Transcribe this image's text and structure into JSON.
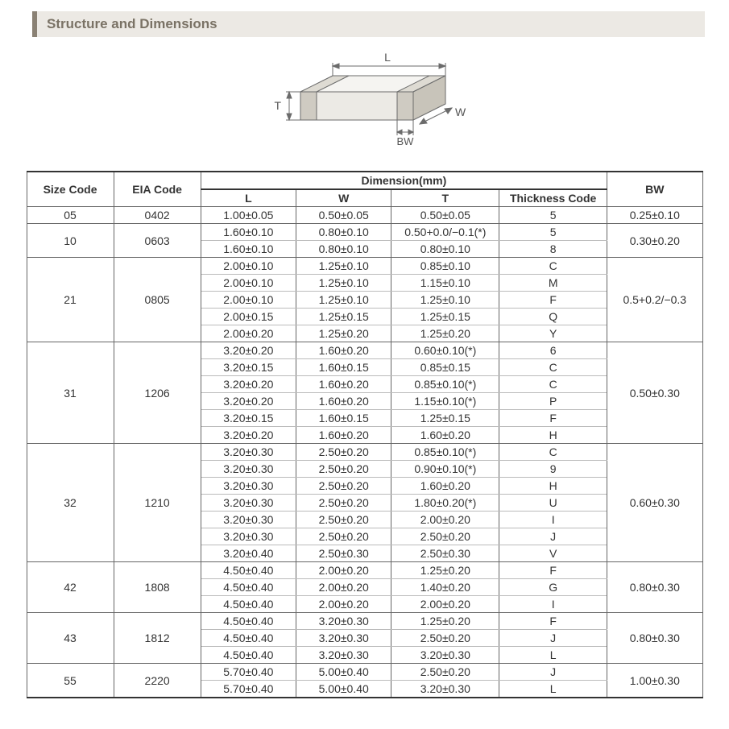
{
  "title": "Structure and Dimensions",
  "diagram": {
    "labels": {
      "L": "L",
      "W": "W",
      "T": "T",
      "BW": "BW"
    },
    "stroke": "#6b6b6b",
    "fill_top": "#f5f4f1",
    "fill_front": "#eceae5",
    "fill_side": "#d9d6cf",
    "fill_band": "#cfcbc2"
  },
  "table": {
    "header_dim": "Dimension(mm)",
    "columns": {
      "size": "Size Code",
      "eia": "EIA Code",
      "L": "L",
      "W": "W",
      "T": "T",
      "thick": "Thickness  Code",
      "BW": "BW"
    },
    "border_color": "#666666",
    "groups": [
      {
        "size": "05",
        "eia": "0402",
        "bw": "0.25±0.10",
        "rows": [
          {
            "L": "1.00±0.05",
            "W": "0.50±0.05",
            "T": "0.50±0.05",
            "thick": "5"
          }
        ]
      },
      {
        "size": "10",
        "eia": "0603",
        "bw": "0.30±0.20",
        "rows": [
          {
            "L": "1.60±0.10",
            "W": "0.80±0.10",
            "T": "0.50+0.0/−0.1(*)",
            "thick": "5"
          },
          {
            "L": "1.60±0.10",
            "W": "0.80±0.10",
            "T": "0.80±0.10",
            "thick": "8"
          }
        ]
      },
      {
        "size": "21",
        "eia": "0805",
        "bw": "0.5+0.2/−0.3",
        "rows": [
          {
            "L": "2.00±0.10",
            "W": "1.25±0.10",
            "T": "0.85±0.10",
            "thick": "C"
          },
          {
            "L": "2.00±0.10",
            "W": "1.25±0.10",
            "T": "1.15±0.10",
            "thick": "M"
          },
          {
            "L": "2.00±0.10",
            "W": "1.25±0.10",
            "T": "1.25±0.10",
            "thick": "F"
          },
          {
            "L": "2.00±0.15",
            "W": "1.25±0.15",
            "T": "1.25±0.15",
            "thick": "Q"
          },
          {
            "L": "2.00±0.20",
            "W": "1.25±0.20",
            "T": "1.25±0.20",
            "thick": "Y"
          }
        ]
      },
      {
        "size": "31",
        "eia": "1206",
        "bw": "0.50±0.30",
        "rows": [
          {
            "L": "3.20±0.20",
            "W": "1.60±0.20",
            "T": "0.60±0.10(*)",
            "thick": "6"
          },
          {
            "L": "3.20±0.15",
            "W": "1.60±0.15",
            "T": "0.85±0.15",
            "thick": "C"
          },
          {
            "L": "3.20±0.20",
            "W": "1.60±0.20",
            "T": "0.85±0.10(*)",
            "thick": "C"
          },
          {
            "L": "3.20±0.20",
            "W": "1.60±0.20",
            "T": "1.15±0.10(*)",
            "thick": "P"
          },
          {
            "L": "3.20±0.15",
            "W": "1.60±0.15",
            "T": "1.25±0.15",
            "thick": "F"
          },
          {
            "L": "3.20±0.20",
            "W": "1.60±0.20",
            "T": "1.60±0.20",
            "thick": "H"
          }
        ]
      },
      {
        "size": "32",
        "eia": "1210",
        "bw": "0.60±0.30",
        "rows": [
          {
            "L": "3.20±0.30",
            "W": "2.50±0.20",
            "T": "0.85±0.10(*)",
            "thick": "C"
          },
          {
            "L": "3.20±0.30",
            "W": "2.50±0.20",
            "T": "0.90±0.10(*)",
            "thick": "9"
          },
          {
            "L": "3.20±0.30",
            "W": "2.50±0.20",
            "T": "1.60±0.20",
            "thick": "H"
          },
          {
            "L": "3.20±0.30",
            "W": "2.50±0.20",
            "T": "1.80±0.20(*)",
            "thick": "U"
          },
          {
            "L": "3.20±0.30",
            "W": "2.50±0.20",
            "T": "2.00±0.20",
            "thick": "I"
          },
          {
            "L": "3.20±0.30",
            "W": "2.50±0.20",
            "T": "2.50±0.20",
            "thick": "J"
          },
          {
            "L": "3.20±0.40",
            "W": "2.50±0.30",
            "T": "2.50±0.30",
            "thick": "V"
          }
        ]
      },
      {
        "size": "42",
        "eia": "1808",
        "bw": "0.80±0.30",
        "rows": [
          {
            "L": "4.50±0.40",
            "W": "2.00±0.20",
            "T": "1.25±0.20",
            "thick": "F"
          },
          {
            "L": "4.50±0.40",
            "W": "2.00±0.20",
            "T": "1.40±0.20",
            "thick": "G"
          },
          {
            "L": "4.50±0.40",
            "W": "2.00±0.20",
            "T": "2.00±0.20",
            "thick": "I"
          }
        ]
      },
      {
        "size": "43",
        "eia": "1812",
        "bw": "0.80±0.30",
        "rows": [
          {
            "L": "4.50±0.40",
            "W": "3.20±0.30",
            "T": "1.25±0.20",
            "thick": "F"
          },
          {
            "L": "4.50±0.40",
            "W": "3.20±0.30",
            "T": "2.50±0.20",
            "thick": "J"
          },
          {
            "L": "4.50±0.40",
            "W": "3.20±0.30",
            "T": "3.20±0.30",
            "thick": "L"
          }
        ]
      },
      {
        "size": "55",
        "eia": "2220",
        "bw": "1.00±0.30",
        "rows": [
          {
            "L": "5.70±0.40",
            "W": "5.00±0.40",
            "T": "2.50±0.20",
            "thick": "J"
          },
          {
            "L": "5.70±0.40",
            "W": "5.00±0.40",
            "T": "3.20±0.30",
            "thick": "L"
          }
        ]
      }
    ]
  }
}
